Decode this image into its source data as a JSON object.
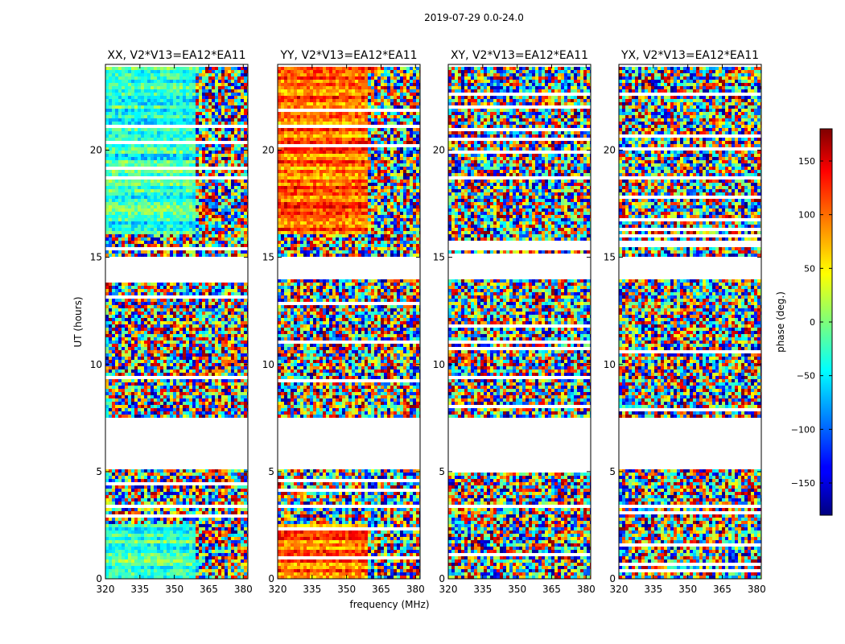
{
  "figure": {
    "suptitle": "2019-07-29 0.0-24.0",
    "ylabel": "UT (hours)",
    "xlabel": "frequency (MHz)",
    "colorbar_label": "phase (deg.)"
  },
  "chart_data": [
    {
      "type": "heatmap",
      "title": "XX, V2*V13=EA12*EA11",
      "xlim": [
        320,
        382
      ],
      "ylim": [
        0,
        24
      ],
      "xticks": [
        320,
        335,
        350,
        365,
        380
      ],
      "yticks": [
        0,
        5,
        10,
        15,
        20
      ],
      "colormap": "jet",
      "data_gaps_hours": [
        [
          3.3,
          3.5
        ],
        [
          5.1,
          7.5
        ],
        [
          14.0,
          15.0
        ]
      ]
    },
    {
      "type": "heatmap",
      "title": "YY, V2*V13=EA12*EA11",
      "xlim": [
        320,
        382
      ],
      "ylim": [
        0,
        24
      ],
      "xticks": [
        320,
        335,
        350,
        365,
        380
      ],
      "yticks": [
        0,
        5,
        10,
        15,
        20
      ],
      "colormap": "jet",
      "data_gaps_hours": [
        [
          3.3,
          3.5
        ],
        [
          5.1,
          7.5
        ],
        [
          14.0,
          15.0
        ]
      ]
    },
    {
      "type": "heatmap",
      "title": "XY, V2*V13=EA12*EA11",
      "xlim": [
        320,
        382
      ],
      "ylim": [
        0,
        24
      ],
      "xticks": [
        320,
        335,
        350,
        365,
        380
      ],
      "yticks": [
        0,
        5,
        10,
        15,
        20
      ],
      "colormap": "jet",
      "data_gaps_hours": [
        [
          3.3,
          3.5
        ],
        [
          5.1,
          7.5
        ],
        [
          14.0,
          15.0
        ]
      ]
    },
    {
      "type": "heatmap",
      "title": "YX, V2*V13=EA12*EA11",
      "xlim": [
        320,
        382
      ],
      "ylim": [
        0,
        24
      ],
      "xticks": [
        320,
        335,
        350,
        365,
        380
      ],
      "yticks": [
        0,
        5,
        10,
        15,
        20
      ],
      "colormap": "jet",
      "data_gaps_hours": [
        [
          3.3,
          3.5
        ],
        [
          5.1,
          7.5
        ],
        [
          14.0,
          15.0
        ]
      ]
    }
  ],
  "colorbar": {
    "range": [
      -180,
      180
    ],
    "ticks": [
      -150,
      -100,
      -50,
      0,
      50,
      100,
      150
    ],
    "tick_labels": [
      "−150",
      "−100",
      "−50",
      "0",
      "50",
      "100",
      "150"
    ],
    "colormap": "jet"
  }
}
